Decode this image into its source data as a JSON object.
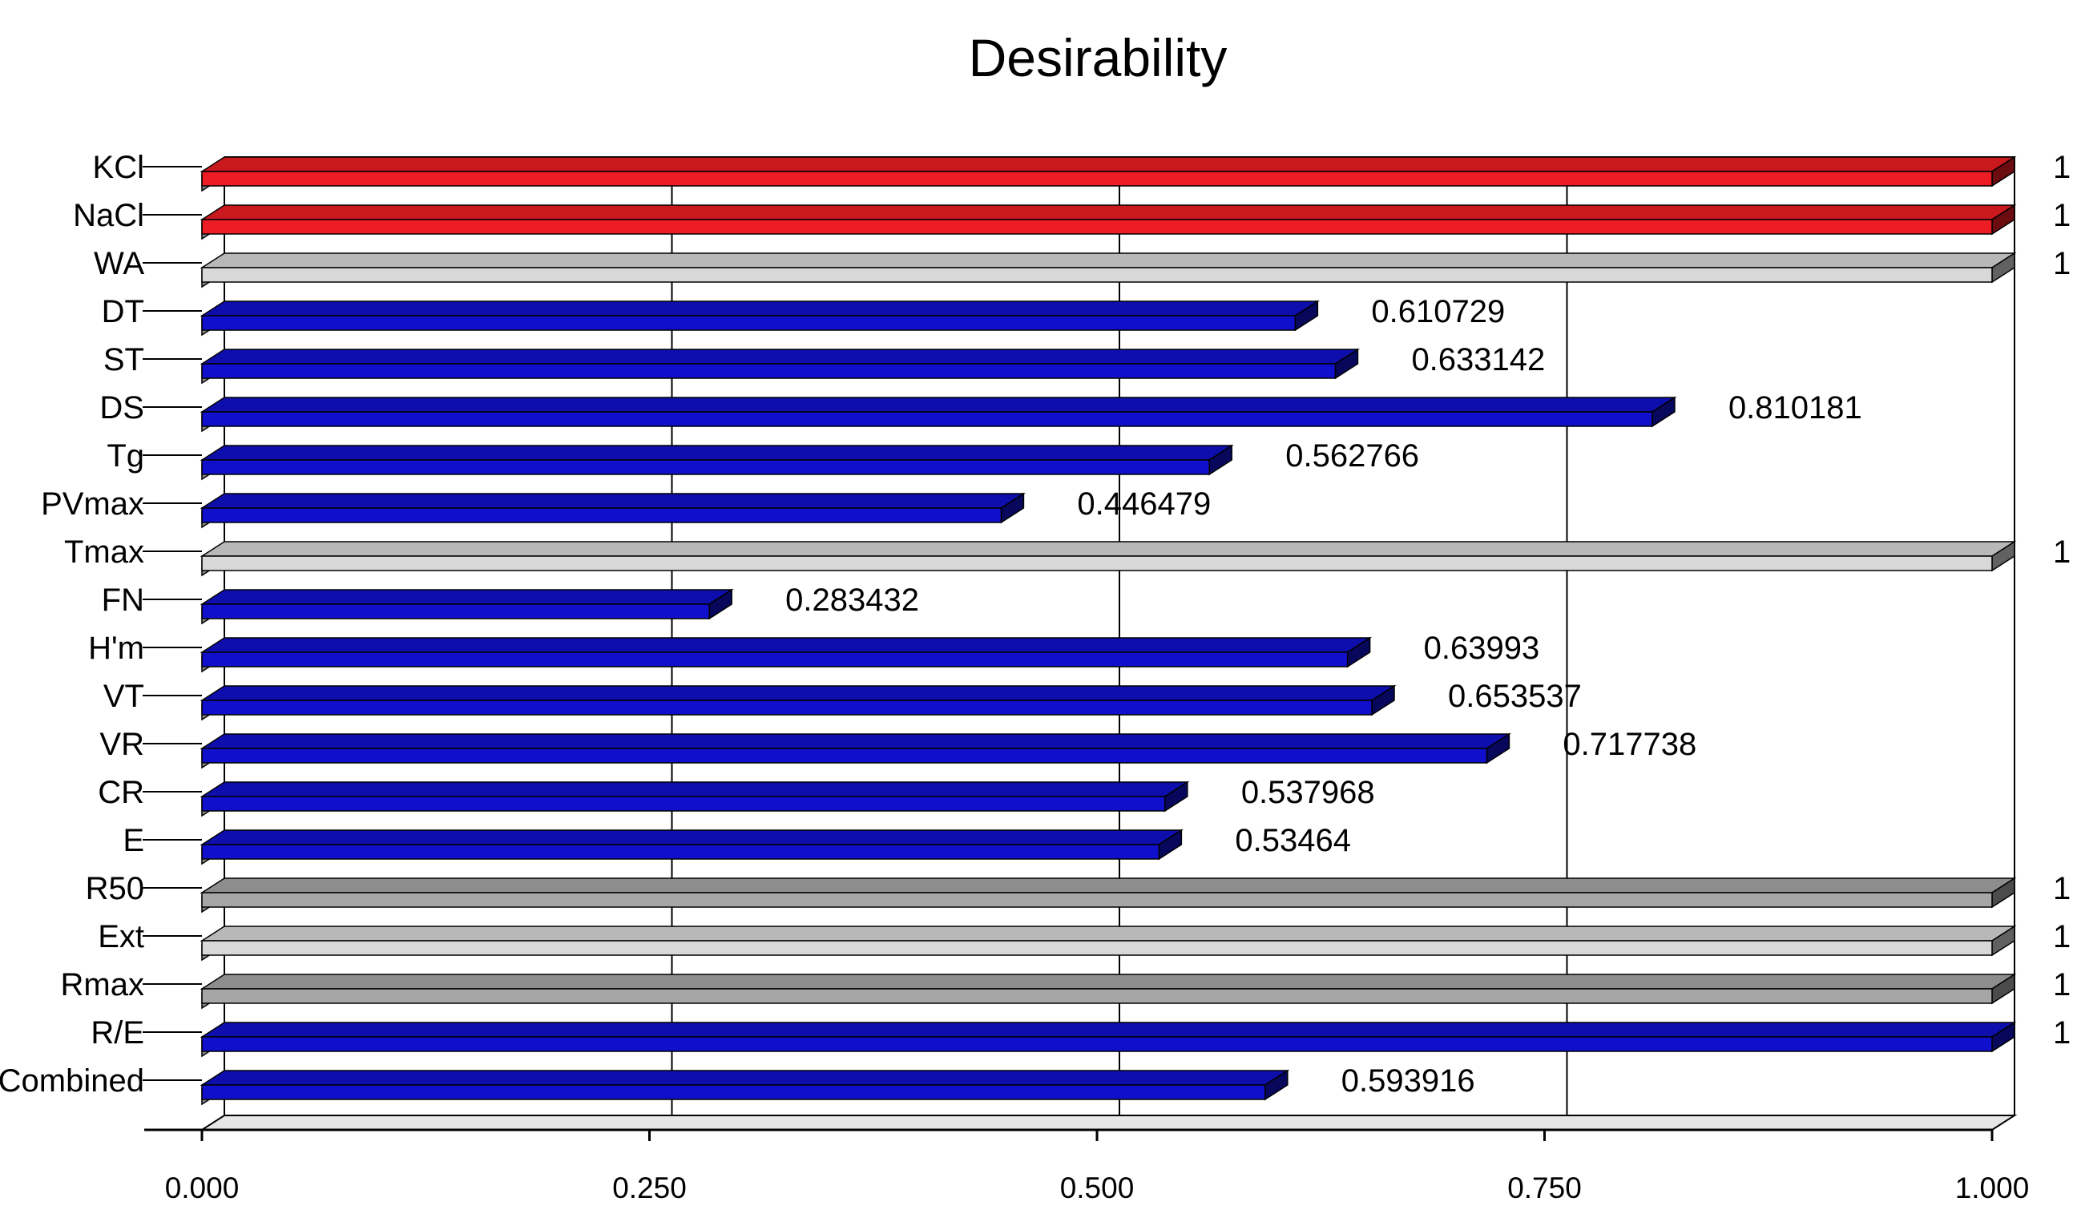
{
  "chart_data": {
    "type": "bar",
    "orientation": "horizontal",
    "title": "Desirability",
    "xlabel": "",
    "ylabel": "",
    "xlim": [
      0,
      1
    ],
    "grid": true,
    "x_ticks": [
      "0.000",
      "0.250",
      "0.500",
      "0.750",
      "1.000"
    ],
    "categories": [
      "KCl",
      "NaCl",
      "WA",
      "DT",
      "ST",
      "DS",
      "Tg",
      "PVmax",
      "Tmax",
      "FN",
      "H'm",
      "VT",
      "VR",
      "CR",
      "E",
      "R50",
      "Ext",
      "Rmax",
      "R/E",
      "Combined"
    ],
    "values": [
      1,
      1,
      1,
      0.610729,
      0.633142,
      0.810181,
      0.562766,
      0.446479,
      1,
      0.283432,
      0.63993,
      0.653537,
      0.717738,
      0.537968,
      0.53464,
      1,
      1,
      1,
      1,
      0.593916
    ],
    "data_labels": [
      "1",
      "1",
      "1",
      "0.610729",
      "0.633142",
      "0.810181",
      "0.562766",
      "0.446479",
      "1",
      "0.283432",
      "0.63993",
      "0.653537",
      "0.717738",
      "0.537968",
      "0.53464",
      "1",
      "1",
      "1",
      "1",
      "0.593916"
    ],
    "bar_colors": [
      "red",
      "red",
      "lightgray",
      "blue",
      "blue",
      "blue",
      "blue",
      "blue",
      "lightgray",
      "blue",
      "blue",
      "blue",
      "blue",
      "blue",
      "blue",
      "gray",
      "lightgray",
      "gray",
      "blue",
      "blue"
    ]
  },
  "colors": {
    "red": "#ee1c24",
    "blue": "#1010cc",
    "gray": "#a6a6a6",
    "lightgray": "#d8d8d8"
  }
}
